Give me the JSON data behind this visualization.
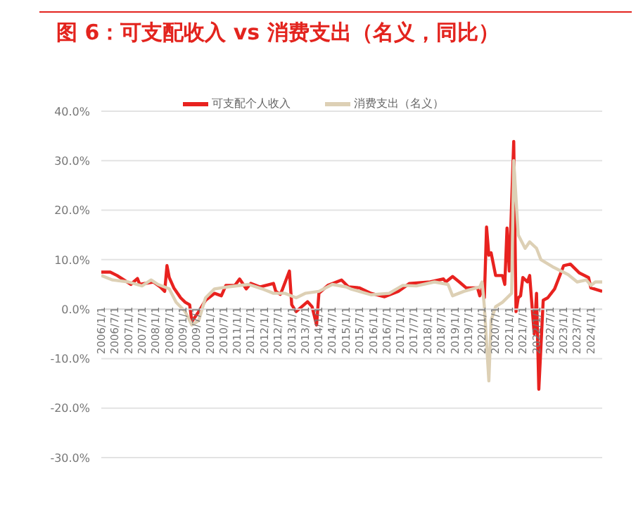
{
  "chart_data": {
    "type": "line",
    "title": "图 6：可支配收入 vs 消费支出（名义，同比）",
    "xlim": [
      "2006-01",
      "2024-06"
    ],
    "xticks": [
      {
        "value": "2006-01",
        "label": "2006/1/1"
      },
      {
        "value": "2006-07",
        "label": "2006/7/1"
      },
      {
        "value": "2007-01",
        "label": "2007/1/1"
      },
      {
        "value": "2007-07",
        "label": "2007/7/1"
      },
      {
        "value": "2008-01",
        "label": "2008/1/1"
      },
      {
        "value": "2008-07",
        "label": "2008/7/1"
      },
      {
        "value": "2009-01",
        "label": "2009/1/1"
      },
      {
        "value": "2009-07",
        "label": "2009/7/1"
      },
      {
        "value": "2010-01",
        "label": "2010/1/1"
      },
      {
        "value": "2010-07",
        "label": "2010/7/1"
      },
      {
        "value": "2011-01",
        "label": "2011/1/1"
      },
      {
        "value": "2011-07",
        "label": "2011/7/1"
      },
      {
        "value": "2012-01",
        "label": "2012/1/1"
      },
      {
        "value": "2012-07",
        "label": "2012/7/1"
      },
      {
        "value": "2013-01",
        "label": "2013/1/1"
      },
      {
        "value": "2013-07",
        "label": "2013/7/1"
      },
      {
        "value": "2014-01",
        "label": "2014/1/1"
      },
      {
        "value": "2014-07",
        "label": "2014/7/1"
      },
      {
        "value": "2015-01",
        "label": "2015/1/1"
      },
      {
        "value": "2015-07",
        "label": "2015/7/1"
      },
      {
        "value": "2016-01",
        "label": "2016/1/1"
      },
      {
        "value": "2016-07",
        "label": "2016/7/1"
      },
      {
        "value": "2017-01",
        "label": "2017/1/1"
      },
      {
        "value": "2017-07",
        "label": "2017/7/1"
      },
      {
        "value": "2018-01",
        "label": "2018/1/1"
      },
      {
        "value": "2018-07",
        "label": "2018/7/1"
      },
      {
        "value": "2019-01",
        "label": "2019/1/1"
      },
      {
        "value": "2019-07",
        "label": "2019/7/1"
      },
      {
        "value": "2020-01",
        "label": "2020/1/1"
      },
      {
        "value": "2020-07",
        "label": "2020/7/1"
      },
      {
        "value": "2021-01",
        "label": "2021/1/1"
      },
      {
        "value": "2021-07",
        "label": "2021/7/1"
      },
      {
        "value": "2022-01",
        "label": "2022/1/1"
      },
      {
        "value": "2022-07",
        "label": "2022/7/1"
      },
      {
        "value": "2023-01",
        "label": "2023/1/1"
      },
      {
        "value": "2023-07",
        "label": "2023/7/1"
      },
      {
        "value": "2024-01",
        "label": "2024/1/1"
      }
    ],
    "ylim": [
      -30,
      40
    ],
    "yticks": [
      {
        "value": -30,
        "label": "-30.0%"
      },
      {
        "value": -20,
        "label": "-20.0%"
      },
      {
        "value": -10,
        "label": "-10.0%"
      },
      {
        "value": 0,
        "label": "0.0%"
      },
      {
        "value": 10,
        "label": "10.0%"
      },
      {
        "value": 20,
        "label": "20.0%"
      },
      {
        "value": 30,
        "label": "30.0%"
      },
      {
        "value": 40,
        "label": "40.0%"
      }
    ],
    "grid": "y",
    "legend": "top",
    "marker": "none",
    "line_style": "solid",
    "series": [
      {
        "name": "可支配个人收入",
        "color": "#e8221f",
        "x": [
          "2006-01",
          "2006-05",
          "2006-08",
          "2006-11",
          "2007-02",
          "2007-05",
          "2007-06",
          "2007-12",
          "2008-03",
          "2008-05",
          "2008-06",
          "2008-07",
          "2008-09",
          "2008-12",
          "2009-02",
          "2009-04",
          "2009-05",
          "2009-08",
          "2009-11",
          "2010-03",
          "2010-06",
          "2010-08",
          "2010-12",
          "2011-02",
          "2011-05",
          "2011-07",
          "2011-11",
          "2012-05",
          "2012-06",
          "2012-08",
          "2012-09",
          "2012-12",
          "2013-01",
          "2013-03",
          "2013-08",
          "2013-10",
          "2013-12",
          "2014-01",
          "2014-05",
          "2014-11",
          "2015-02",
          "2015-07",
          "2015-12",
          "2016-06",
          "2016-12",
          "2017-05",
          "2018-02",
          "2018-08",
          "2018-09",
          "2018-12",
          "2019-03",
          "2019-06",
          "2019-11",
          "2019-12",
          "2020-01",
          "2020-02",
          "2020-03",
          "2020-04",
          "2020-05",
          "2020-07",
          "2020-10",
          "2020-11",
          "2020-12",
          "2021-01",
          "2021-03",
          "2021-04",
          "2021-05",
          "2021-06",
          "2021-07",
          "2021-09",
          "2021-10",
          "2021-12",
          "2022-01",
          "2022-02",
          "2022-04",
          "2022-06",
          "2022-09",
          "2023-01",
          "2023-04",
          "2023-08",
          "2023-12",
          "2024-01",
          "2024-06"
        ],
        "values": [
          7.5,
          7.5,
          6.8,
          5.9,
          5.0,
          6.2,
          5.0,
          5.5,
          4.5,
          3.6,
          8.8,
          6.4,
          4.3,
          2.3,
          1.4,
          0.9,
          -2.5,
          -0.5,
          1.8,
          3.2,
          2.7,
          4.8,
          4.8,
          6.1,
          4.1,
          5.2,
          4.5,
          5.2,
          3.6,
          3.0,
          4.1,
          7.7,
          0.9,
          -0.5,
          1.5,
          0.5,
          -3.2,
          3.2,
          4.8,
          5.9,
          4.5,
          4.3,
          3.2,
          2.5,
          3.6,
          5.2,
          5.5,
          6.1,
          5.5,
          6.6,
          5.5,
          4.3,
          4.3,
          2.7,
          4.1,
          2.3,
          16.6,
          10.9,
          11.4,
          6.8,
          6.8,
          5.0,
          16.4,
          7.7,
          33.9,
          -0.5,
          2.3,
          2.7,
          6.4,
          5.5,
          6.8,
          -5.0,
          3.2,
          -16.2,
          1.8,
          2.3,
          4.1,
          8.8,
          9.1,
          7.3,
          6.4,
          4.3,
          3.6
        ]
      },
      {
        "name": "消费支出（名义）",
        "color": "#ddd0b5",
        "x": [
          "2006-01",
          "2006-06",
          "2007-01",
          "2007-07",
          "2007-11",
          "2008-02",
          "2008-07",
          "2008-10",
          "2009-02",
          "2009-05",
          "2009-08",
          "2009-11",
          "2010-03",
          "2010-09",
          "2011-06",
          "2011-12",
          "2012-05",
          "2012-10",
          "2013-03",
          "2013-07",
          "2014-01",
          "2014-07",
          "2015-01",
          "2015-03",
          "2015-12",
          "2016-08",
          "2017-02",
          "2017-08",
          "2018-04",
          "2018-10",
          "2018-12",
          "2019-05",
          "2019-12",
          "2020-01",
          "2020-02",
          "2020-04",
          "2020-05",
          "2020-07",
          "2020-10",
          "2021-02",
          "2021-03",
          "2021-05",
          "2021-08",
          "2021-10",
          "2022-01",
          "2022-03",
          "2022-08",
          "2023-03",
          "2023-07",
          "2023-11",
          "2024-01",
          "2024-03",
          "2024-06"
        ],
        "values": [
          6.8,
          5.9,
          5.5,
          4.7,
          5.9,
          5.0,
          4.1,
          1.4,
          -0.5,
          -3.2,
          -2.3,
          2.3,
          4.1,
          4.5,
          5.0,
          4.1,
          3.2,
          3.2,
          2.3,
          3.2,
          3.6,
          5.0,
          4.5,
          4.1,
          2.9,
          3.2,
          4.8,
          4.7,
          5.5,
          5.0,
          2.7,
          3.6,
          4.5,
          5.5,
          0.5,
          -14.5,
          -2.3,
          0.5,
          1.4,
          3.2,
          30.0,
          15.0,
          12.3,
          13.6,
          12.3,
          10.0,
          8.6,
          7.0,
          5.5,
          5.9,
          4.8,
          5.5,
          5.5
        ]
      }
    ]
  }
}
